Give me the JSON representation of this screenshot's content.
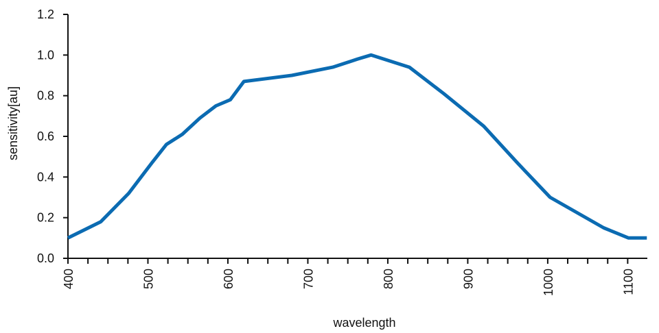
{
  "chart_data": {
    "type": "line",
    "xlabel": "wavelength",
    "ylabel": "sensitivity[au]",
    "xlim": [
      400,
      1120
    ],
    "ylim": [
      0,
      1.2
    ],
    "x_ticks": [
      400,
      500,
      600,
      700,
      800,
      900,
      1000,
      1100
    ],
    "x_tick_labels": [
      "400",
      "500",
      "600",
      "700",
      "800",
      "900",
      "1000",
      "1100"
    ],
    "y_ticks": [
      0,
      0.2,
      0.4,
      0.6,
      0.8,
      1.0,
      1.2
    ],
    "y_tick_labels": [
      "0.0",
      "0.2",
      "0.4",
      "0.6",
      "0.8",
      "1.0",
      "1.2"
    ],
    "x_minor_step": 25,
    "grid": false,
    "series": [
      {
        "color": "#0b6bb2",
        "x": [
          400,
          441,
          476,
          505,
          523,
          543,
          565,
          585,
          603,
          620,
          680,
          731,
          762,
          779,
          827,
          870,
          920,
          962,
          1003,
          1070,
          1101,
          1124
        ],
        "y": [
          0.1,
          0.18,
          0.32,
          0.47,
          0.56,
          0.61,
          0.69,
          0.75,
          0.78,
          0.87,
          0.9,
          0.94,
          0.98,
          1.0,
          0.94,
          0.81,
          0.65,
          0.47,
          0.3,
          0.15,
          0.1,
          0.1
        ]
      }
    ]
  }
}
